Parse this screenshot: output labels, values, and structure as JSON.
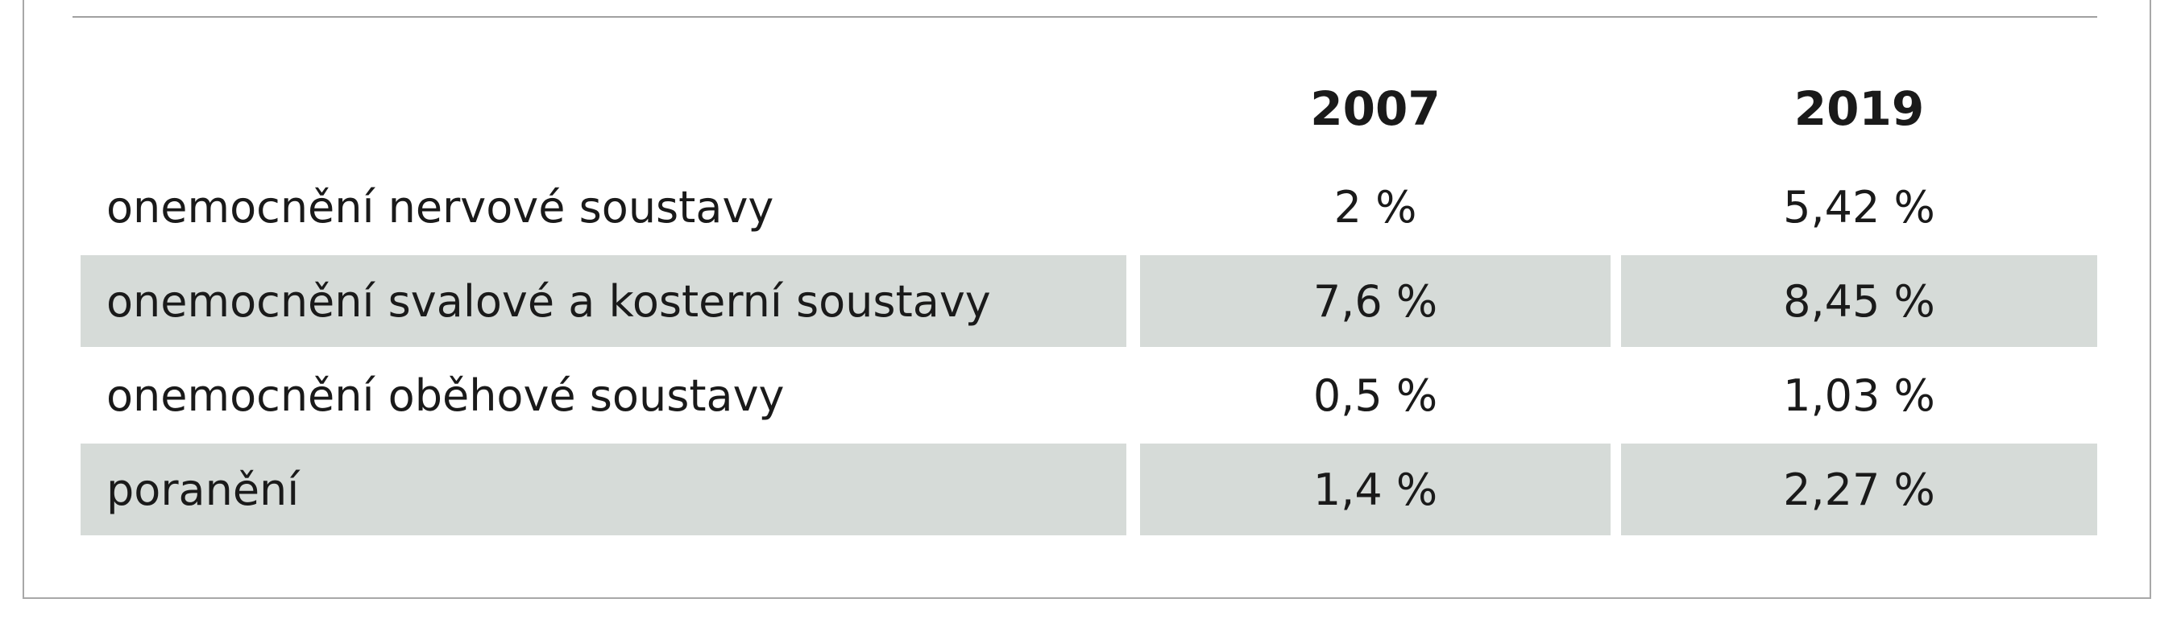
{
  "table": {
    "columns": [
      "2007",
      "2019"
    ],
    "rows": [
      {
        "label": "onemocnění nervové soustavy",
        "values": [
          "2 %",
          "5,42 %"
        ]
      },
      {
        "label": "onemocnění svalové a kosterní soustavy",
        "values": [
          "7,6 %",
          "8,45 %"
        ]
      },
      {
        "label": "onemocnění oběhové soustavy",
        "values": [
          "0,5 %",
          "1,03 %"
        ]
      },
      {
        "label": "poranění",
        "values": [
          "1,4 %",
          "2,27 %"
        ]
      }
    ]
  }
}
